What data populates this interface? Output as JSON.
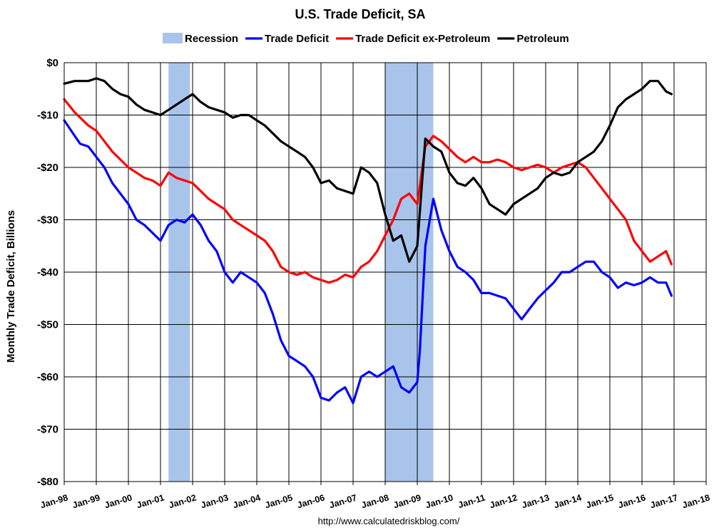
{
  "chart_data": {
    "type": "line",
    "title": "U.S. Trade Deficit, SA",
    "xlabel": "",
    "ylabel": "Monthly Trade Deficit, Billions",
    "source": "http://www.calculatedriskblog.com/",
    "ylim": [
      -80,
      0
    ],
    "y_ticks": [
      "$0",
      "-$10",
      "-$20",
      "-$30",
      "-$40",
      "-$50",
      "-$60",
      "-$70",
      "-$80"
    ],
    "x_ticks": [
      "Jan-98",
      "Jan-99",
      "Jan-00",
      "Jan-01",
      "Jan-02",
      "Jan-03",
      "Jan-04",
      "Jan-05",
      "Jan-06",
      "Jan-07",
      "Jan-08",
      "Jan-09",
      "Jan-10",
      "Jan-11",
      "Jan-12",
      "Jan-13",
      "Jan-14",
      "Jan-15",
      "Jan-16",
      "Jan-17",
      "Jan-18"
    ],
    "xlim": [
      1998.0,
      2018.0
    ],
    "grid": true,
    "legend_position": "top",
    "legend": [
      {
        "name": "Recession",
        "color": "#a9c4ea",
        "kind": "band"
      },
      {
        "name": "Trade Deficit",
        "color": "#0000ff",
        "kind": "line"
      },
      {
        "name": "Trade Deficit ex-Petroleum",
        "color": "#ff0000",
        "kind": "line"
      },
      {
        "name": "Petroleum",
        "color": "#000000",
        "kind": "line"
      }
    ],
    "recessions": [
      {
        "start": 2001.25,
        "end": 2001.92
      },
      {
        "start": 2008.0,
        "end": 2009.5
      }
    ],
    "series": [
      {
        "name": "Trade Deficit",
        "color": "#0000ff",
        "x": [
          1998.0,
          1998.33,
          1998.5,
          1998.75,
          1999.0,
          1999.25,
          1999.5,
          1999.75,
          2000.0,
          2000.25,
          2000.5,
          2000.75,
          2001.0,
          2001.25,
          2001.5,
          2001.75,
          2002.0,
          2002.25,
          2002.5,
          2002.75,
          2003.0,
          2003.25,
          2003.5,
          2003.75,
          2004.0,
          2004.25,
          2004.5,
          2004.75,
          2005.0,
          2005.25,
          2005.5,
          2005.75,
          2006.0,
          2006.25,
          2006.5,
          2006.75,
          2007.0,
          2007.25,
          2007.5,
          2007.75,
          2008.0,
          2008.25,
          2008.5,
          2008.75,
          2009.0,
          2009.08,
          2009.25,
          2009.5,
          2009.75,
          2010.0,
          2010.25,
          2010.5,
          2010.75,
          2011.0,
          2011.25,
          2011.5,
          2011.75,
          2012.0,
          2012.25,
          2012.5,
          2012.75,
          2013.0,
          2013.25,
          2013.5,
          2013.75,
          2014.0,
          2014.25,
          2014.5,
          2014.75,
          2015.0,
          2015.25,
          2015.5,
          2015.75,
          2016.0,
          2016.25,
          2016.5,
          2016.75,
          2016.92
        ],
        "values": [
          -11,
          -14,
          -15.5,
          -16,
          -18,
          -20,
          -23,
          -25,
          -27,
          -30,
          -31,
          -32.5,
          -34,
          -31,
          -30,
          -30.5,
          -29,
          -31,
          -34,
          -36,
          -40,
          -42,
          -40,
          -41,
          -42,
          -44,
          -48,
          -53,
          -56,
          -57,
          -58,
          -60,
          -64,
          -64.5,
          -63,
          -62,
          -65,
          -60,
          -59,
          -60,
          -59,
          -58,
          -62,
          -63,
          -61,
          -55,
          -35,
          -26,
          -32,
          -36,
          -39,
          -40,
          -41.5,
          -44,
          -44,
          -44.5,
          -45,
          -47,
          -49,
          -47,
          -45,
          -43.5,
          -42,
          -40,
          -40,
          -39,
          -38,
          -38,
          -40,
          -41,
          -43,
          -42,
          -42.5,
          -42,
          -41,
          -42,
          -42,
          -44.5
        ]
      },
      {
        "name": "Trade Deficit ex-Petroleum",
        "color": "#ff0000",
        "x": [
          1998.0,
          1998.33,
          1998.5,
          1998.75,
          1999.0,
          1999.25,
          1999.5,
          1999.75,
          2000.0,
          2000.25,
          2000.5,
          2000.75,
          2001.0,
          2001.25,
          2001.5,
          2001.75,
          2002.0,
          2002.25,
          2002.5,
          2002.75,
          2003.0,
          2003.25,
          2003.5,
          2003.75,
          2004.0,
          2004.25,
          2004.5,
          2004.75,
          2005.0,
          2005.25,
          2005.5,
          2005.75,
          2006.0,
          2006.25,
          2006.5,
          2006.75,
          2007.0,
          2007.25,
          2007.5,
          2007.75,
          2008.0,
          2008.25,
          2008.5,
          2008.75,
          2009.0,
          2009.25,
          2009.5,
          2009.75,
          2010.0,
          2010.25,
          2010.5,
          2010.75,
          2011.0,
          2011.25,
          2011.5,
          2011.75,
          2012.0,
          2012.25,
          2012.5,
          2012.75,
          2013.0,
          2013.25,
          2013.5,
          2013.75,
          2014.0,
          2014.25,
          2014.5,
          2014.75,
          2015.0,
          2015.25,
          2015.5,
          2015.75,
          2016.0,
          2016.25,
          2016.5,
          2016.75,
          2016.92
        ],
        "values": [
          -7,
          -9.5,
          -10.5,
          -12,
          -13,
          -15,
          -17,
          -18.5,
          -20,
          -21,
          -22,
          -22.5,
          -23.5,
          -21,
          -22,
          -22.5,
          -23,
          -24.5,
          -26,
          -27,
          -28,
          -30,
          -31,
          -32,
          -33,
          -34,
          -36,
          -39,
          -40,
          -40.5,
          -40,
          -41,
          -41.5,
          -42,
          -41.5,
          -40.5,
          -41,
          -39,
          -38,
          -36,
          -33,
          -30,
          -26,
          -25,
          -27,
          -16,
          -14,
          -15,
          -16.5,
          -18,
          -19,
          -18,
          -19,
          -19,
          -18.5,
          -19,
          -20,
          -20.5,
          -20,
          -19.5,
          -20,
          -21,
          -20,
          -19.5,
          -19,
          -20,
          -22,
          -24,
          -26,
          -28,
          -30,
          -34,
          -36,
          -38,
          -37,
          -36,
          -38.5
        ]
      },
      {
        "name": "Petroleum",
        "color": "#000000",
        "x": [
          1998.0,
          1998.33,
          1998.5,
          1998.75,
          1999.0,
          1999.25,
          1999.5,
          1999.75,
          2000.0,
          2000.25,
          2000.5,
          2000.75,
          2001.0,
          2001.25,
          2001.5,
          2001.75,
          2002.0,
          2002.25,
          2002.5,
          2002.75,
          2003.0,
          2003.25,
          2003.5,
          2003.75,
          2004.0,
          2004.25,
          2004.5,
          2004.75,
          2005.0,
          2005.25,
          2005.5,
          2005.75,
          2006.0,
          2006.25,
          2006.5,
          2006.75,
          2007.0,
          2007.25,
          2007.5,
          2007.75,
          2008.0,
          2008.25,
          2008.5,
          2008.75,
          2009.0,
          2009.25,
          2009.5,
          2009.75,
          2010.0,
          2010.25,
          2010.5,
          2010.75,
          2011.0,
          2011.25,
          2011.5,
          2011.75,
          2012.0,
          2012.25,
          2012.5,
          2012.75,
          2013.0,
          2013.25,
          2013.5,
          2013.75,
          2014.0,
          2014.25,
          2014.5,
          2014.75,
          2015.0,
          2015.25,
          2015.5,
          2015.75,
          2016.0,
          2016.25,
          2016.5,
          2016.75,
          2016.92
        ],
        "values": [
          -4,
          -3.5,
          -3.5,
          -3.5,
          -3,
          -3.5,
          -5,
          -6,
          -6.5,
          -8,
          -9,
          -9.5,
          -10,
          -9,
          -8,
          -7,
          -6,
          -7.5,
          -8.5,
          -9,
          -9.5,
          -10.5,
          -10,
          -10,
          -11,
          -12,
          -13.5,
          -15,
          -16,
          -17,
          -18,
          -20,
          -23,
          -22.5,
          -24,
          -24.5,
          -25,
          -20,
          -21,
          -23,
          -29,
          -34,
          -33,
          -38,
          -35,
          -14.5,
          -16,
          -17,
          -21,
          -23,
          -23.5,
          -22,
          -24,
          -27,
          -28,
          -29,
          -27,
          -26,
          -25,
          -24,
          -22,
          -21,
          -21.5,
          -21,
          -19,
          -18,
          -17,
          -15,
          -12,
          -8.5,
          -7,
          -6,
          -5,
          -3.5,
          -3.5,
          -5.5,
          -6
        ]
      }
    ]
  }
}
